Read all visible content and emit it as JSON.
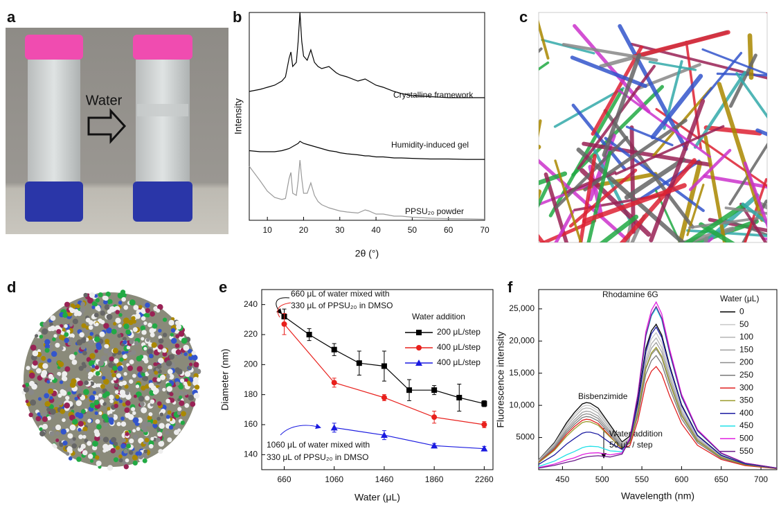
{
  "panels": {
    "labels": [
      "a",
      "b",
      "c",
      "d",
      "e",
      "f"
    ],
    "photo_label": "Water"
  },
  "chart_data": [
    {
      "type": "line",
      "x_label": "2θ (°)",
      "y_label": "Intensity",
      "xlim": [
        5,
        70
      ],
      "xticks": [
        10,
        20,
        30,
        40,
        50,
        60,
        70
      ],
      "ylim": [
        0,
        10
      ],
      "x": [
        5,
        8,
        10,
        12,
        14,
        15,
        16,
        16.5,
        17,
        18,
        18.5,
        19,
        19.5,
        20,
        21,
        22,
        23,
        24,
        25,
        27,
        29,
        30,
        32,
        35,
        37,
        38,
        40,
        42,
        45,
        47,
        50,
        55,
        60,
        65,
        70
      ],
      "series": [
        {
          "name": "Crystalline framework",
          "color": "#000000",
          "values": [
            6.2,
            6.3,
            6.4,
            6.5,
            6.7,
            6.9,
            7.8,
            8.1,
            7.4,
            7.6,
            8.6,
            10,
            8.6,
            7.9,
            7.7,
            8.2,
            7.6,
            7.4,
            7.3,
            7.4,
            7.1,
            7.0,
            6.9,
            6.7,
            6.8,
            6.7,
            6.5,
            6.4,
            6.2,
            6.1,
            6.0,
            5.95,
            5.9,
            5.9,
            5.9
          ]
        },
        {
          "name": "Humidity-induced gel",
          "color": "#000000",
          "values": [
            3.35,
            3.3,
            3.3,
            3.3,
            3.35,
            3.4,
            3.45,
            3.5,
            3.55,
            3.65,
            3.7,
            3.8,
            3.75,
            3.7,
            3.65,
            3.6,
            3.55,
            3.5,
            3.45,
            3.35,
            3.3,
            3.25,
            3.2,
            3.15,
            3.1,
            3.1,
            3.05,
            3.05,
            3.0,
            3.0,
            2.98,
            2.95,
            2.95,
            2.93,
            2.93
          ]
        },
        {
          "name": "PPSU₂₀ powder",
          "color": "#9a9a9a",
          "values": [
            2.6,
            1.9,
            1.4,
            1.1,
            1.0,
            1.05,
            2.0,
            2.3,
            1.3,
            1.2,
            1.9,
            2.9,
            2.0,
            1.3,
            1.3,
            1.8,
            1.2,
            0.9,
            0.75,
            0.6,
            0.5,
            0.45,
            0.4,
            0.35,
            0.5,
            0.45,
            0.3,
            0.3,
            0.2,
            0.2,
            0.15,
            0.1,
            0.08,
            0.07,
            0.05
          ]
        }
      ]
    },
    {
      "type": "line",
      "x_label": "Water (μL)",
      "y_label": "Diameter (nm)",
      "xlim": [
        480,
        2330
      ],
      "xticks": [
        660,
        1060,
        1460,
        1860,
        2260
      ],
      "ylim": [
        130,
        250
      ],
      "yticks": [
        140,
        160,
        180,
        200,
        220,
        240
      ],
      "legend_title": "Water addition",
      "annotations": [
        "660 μL of water mixed with",
        "330 μL of PPSU₂₀ in DMSO",
        "1060 μL of water mixed with",
        "330 μL of PPSU₂₀ in DMSO"
      ],
      "series": [
        {
          "name": "200 μL/step",
          "color": "#000000",
          "marker": "square",
          "x": [
            660,
            860,
            1060,
            1260,
            1460,
            1660,
            1860,
            2060,
            2260
          ],
          "values": [
            232,
            220,
            210,
            201,
            199,
            183,
            183,
            178,
            174
          ],
          "errors": [
            5,
            4,
            4,
            8,
            10,
            7,
            3,
            9,
            2
          ]
        },
        {
          "name": "400 μL/step",
          "color": "#e8201c",
          "marker": "circle",
          "x": [
            660,
            1060,
            1460,
            1860,
            2260
          ],
          "values": [
            227,
            188,
            178,
            165,
            160
          ],
          "errors": [
            7,
            3,
            2,
            4,
            2
          ]
        },
        {
          "name": "400 μL/step",
          "color": "#1a1ae0",
          "marker": "triangle",
          "x": [
            1060,
            1460,
            1860,
            2260
          ],
          "values": [
            158,
            153,
            146,
            144
          ],
          "errors": [
            3,
            3,
            1.5,
            1.5
          ]
        }
      ]
    },
    {
      "type": "line",
      "x_label": "Wavelength (nm)",
      "y_label": "Fluorescence intensity",
      "xlim": [
        420,
        720
      ],
      "xticks": [
        450,
        500,
        550,
        600,
        650,
        700
      ],
      "ylim": [
        0,
        28000
      ],
      "yticks": [
        5000,
        {
          "value": 10000,
          "label": "10,000"
        },
        {
          "value": 15000,
          "label": "15,000"
        },
        {
          "value": 20000,
          "label": "20,000"
        },
        {
          "value": 25000,
          "label": "25,000"
        }
      ],
      "legend_title": "Water (μL)",
      "annotations": [
        "Rhodamine 6G",
        "Bisbenzimide",
        "Water addition",
        "50 μL / step"
      ],
      "x": [
        420,
        440,
        455,
        465,
        475,
        480,
        485,
        495,
        510,
        525,
        535,
        545,
        555,
        562,
        568,
        575,
        585,
        600,
        620,
        650,
        680,
        720
      ],
      "series": [
        {
          "name": "0",
          "color": "#000000",
          "values": [
            1520,
            4240,
            7270,
            8890,
            10220,
            10430,
            10340,
            9560,
            6950,
            4310,
            5230,
            10740,
            18890,
            21590,
            22600,
            20940,
            16160,
            10090,
            5350,
            2230,
            890,
            220
          ]
        },
        {
          "name": "50",
          "color": "#c8c8c8",
          "values": [
            1460,
            4070,
            6980,
            8540,
            9810,
            10020,
            9930,
            9170,
            6660,
            4110,
            4940,
            10130,
            17800,
            20340,
            21290,
            19720,
            15220,
            9500,
            5040,
            2100,
            840,
            210
          ]
        },
        {
          "name": "100",
          "color": "#b4b4b4",
          "values": [
            1400,
            3910,
            6700,
            8180,
            9410,
            9600,
            9520,
            8790,
            6390,
            3940,
            4750,
            9740,
            17120,
            19560,
            20480,
            18970,
            14640,
            9140,
            4850,
            2020,
            810,
            200
          ]
        },
        {
          "name": "150",
          "color": "#a0a0a0",
          "values": [
            1320,
            3700,
            6340,
            7740,
            8910,
            9090,
            9010,
            8330,
            6060,
            3760,
            4570,
            9390,
            16520,
            18880,
            19760,
            18310,
            14130,
            8820,
            4680,
            1950,
            780,
            200
          ]
        },
        {
          "name": "200",
          "color": "#8c8c8c",
          "values": [
            1260,
            3530,
            6050,
            7390,
            8500,
            8680,
            8600,
            7950,
            5780,
            3580,
            4340,
            8910,
            15670,
            17910,
            18750,
            17370,
            13400,
            8370,
            4440,
            1850,
            740,
            190
          ]
        },
        {
          "name": "250",
          "color": "#787878",
          "values": [
            1200,
            3360,
            5760,
            7040,
            8100,
            8260,
            8190,
            7570,
            5500,
            3400,
            4110,
            8440,
            14830,
            16950,
            17740,
            16440,
            12680,
            7920,
            4200,
            1750,
            700,
            180
          ]
        },
        {
          "name": "300",
          "color": "#e02020",
          "values": [
            1140,
            3190,
            5470,
            6690,
            7680,
            7840,
            7760,
            7160,
            5190,
            3160,
            3760,
            7640,
            13410,
            15310,
            16030,
            14850,
            11450,
            7150,
            3790,
            1580,
            630,
            160
          ]
        },
        {
          "name": "350",
          "color": "#9a9a2a",
          "values": [
            1080,
            3020,
            5180,
            6340,
            7320,
            7480,
            7430,
            6900,
            5070,
            3300,
            4250,
            8960,
            15850,
            18150,
            19020,
            17630,
            13610,
            8500,
            4510,
            1880,
            750,
            190
          ]
        },
        {
          "name": "400",
          "color": "#1a1aa0",
          "values": [
            830,
            2310,
            3960,
            4840,
            5670,
            5830,
            5830,
            5500,
            4180,
            3140,
            4620,
            10290,
            18370,
            21120,
            22170,
            20570,
            15900,
            9930,
            5280,
            2200,
            880,
            220
          ]
        },
        {
          "name": "450",
          "color": "#20e0e8",
          "values": [
            480,
            1340,
            2300,
            2820,
            3420,
            3580,
            3640,
            3570,
            2920,
            2800,
            4880,
            11470,
            20690,
            23880,
            25100,
            23310,
            18030,
            11270,
            6000,
            2500,
            1000,
            250
          ]
        },
        {
          "name": "500",
          "color": "#e020e0",
          "values": [
            320,
            880,
            1510,
            1850,
            2340,
            2490,
            2580,
            2630,
            2300,
            2610,
            4930,
            11850,
            21450,
            24780,
            26060,
            24220,
            18740,
            11710,
            6240,
            2600,
            1040,
            260
          ]
        },
        {
          "name": "550",
          "color": "#6a1a8a",
          "values": [
            240,
            670,
            1150,
            1410,
            1840,
            1980,
            2070,
            2170,
            1970,
            2420,
            4750,
            11500,
            20840,
            24100,
            25350,
            23560,
            18230,
            11390,
            6070,
            2530,
            1010,
            250
          ]
        }
      ]
    }
  ]
}
